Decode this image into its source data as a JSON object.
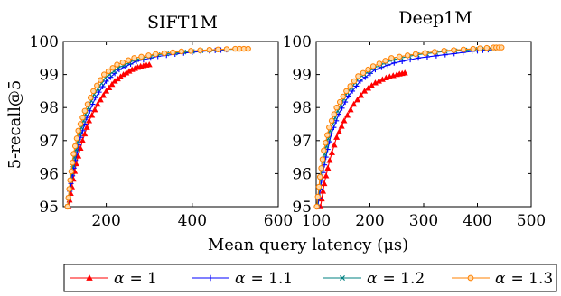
{
  "ylabel": "5-recall@5",
  "xlabel": "Mean query latency (μs)",
  "legend": {
    "placement": "bottom",
    "entries": [
      {
        "label": "α = 1",
        "symbol": "α",
        "value": "= 1",
        "color": "#ff0000",
        "marker": "triangle"
      },
      {
        "label": "α = 1.1",
        "symbol": "α",
        "value": "= 1.1",
        "color": "#0000ff",
        "marker": "plus"
      },
      {
        "label": "α = 1.2",
        "symbol": "α",
        "value": "= 1.2",
        "color": "#008080",
        "marker": "x"
      },
      {
        "label": "α = 1.3",
        "symbol": "α",
        "value": "= 1.3",
        "color": "#ff8000",
        "marker": "circle"
      }
    ]
  },
  "chart_data": [
    {
      "type": "line",
      "title": "SIFT1M",
      "xlim": [
        100,
        600
      ],
      "ylim": [
        95,
        100
      ],
      "xticks": [
        200,
        400,
        600
      ],
      "yticks": [
        95,
        96,
        97,
        98,
        99,
        100
      ],
      "series": [
        {
          "name": "α = 1",
          "x": [
            112,
            120,
            130,
            145,
            160,
            180,
            200,
            220,
            240,
            260,
            280,
            300
          ],
          "y": [
            95.0,
            95.6,
            96.3,
            97.0,
            97.6,
            98.1,
            98.5,
            98.8,
            99.0,
            99.15,
            99.25,
            99.3
          ]
        },
        {
          "name": "α = 1.1",
          "x": [
            110,
            118,
            128,
            140,
            155,
            175,
            200,
            230,
            270,
            320,
            380,
            440,
            480
          ],
          "y": [
            95.0,
            95.7,
            96.4,
            97.1,
            97.7,
            98.3,
            98.8,
            99.15,
            99.4,
            99.55,
            99.65,
            99.72,
            99.75
          ]
        },
        {
          "name": "α = 1.2",
          "x": [
            110,
            117,
            126,
            138,
            152,
            172,
            198,
            228,
            268,
            320,
            380,
            440,
            500
          ],
          "y": [
            95.0,
            95.8,
            96.5,
            97.2,
            97.8,
            98.4,
            98.9,
            99.2,
            99.45,
            99.6,
            99.68,
            99.74,
            99.77
          ]
        },
        {
          "name": "α = 1.3",
          "x": [
            110,
            116,
            124,
            135,
            150,
            170,
            195,
            225,
            265,
            315,
            375,
            440,
            500,
            530
          ],
          "y": [
            95.0,
            95.8,
            96.6,
            97.3,
            97.9,
            98.5,
            99.0,
            99.3,
            99.5,
            99.62,
            99.7,
            99.75,
            99.78,
            99.78
          ]
        }
      ]
    },
    {
      "type": "line",
      "title": "Deep1M",
      "xlim": [
        100,
        500
      ],
      "ylim": [
        95,
        100
      ],
      "xticks": [
        100,
        200,
        300,
        400,
        500
      ],
      "yticks": [
        95,
        96,
        97,
        98,
        99,
        100
      ],
      "series": [
        {
          "name": "α = 1",
          "x": [
            108,
            115,
            125,
            138,
            152,
            170,
            190,
            210,
            230,
            250,
            265
          ],
          "y": [
            95.0,
            95.7,
            96.4,
            97.1,
            97.6,
            98.1,
            98.5,
            98.75,
            98.9,
            99.0,
            99.05
          ]
        },
        {
          "name": "α = 1.1",
          "x": [
            103,
            110,
            118,
            128,
            142,
            160,
            182,
            210,
            245,
            290,
            340,
            390,
            420
          ],
          "y": [
            95.0,
            95.8,
            96.5,
            97.2,
            97.8,
            98.35,
            98.8,
            99.15,
            99.35,
            99.5,
            99.6,
            99.7,
            99.75
          ]
        },
        {
          "name": "α = 1.2",
          "x": [
            102,
            108,
            116,
            126,
            140,
            158,
            180,
            208,
            243,
            288,
            340,
            395,
            430
          ],
          "y": [
            95.0,
            95.9,
            96.6,
            97.3,
            97.9,
            98.45,
            98.9,
            99.2,
            99.45,
            99.6,
            99.7,
            99.76,
            99.8
          ]
        },
        {
          "name": "α = 1.3",
          "x": [
            101,
            107,
            114,
            124,
            138,
            156,
            178,
            206,
            240,
            285,
            338,
            392,
            430,
            445
          ],
          "y": [
            95.0,
            95.9,
            96.7,
            97.4,
            98.0,
            98.5,
            98.95,
            99.25,
            99.5,
            99.62,
            99.72,
            99.78,
            99.82,
            99.82
          ]
        }
      ]
    }
  ]
}
